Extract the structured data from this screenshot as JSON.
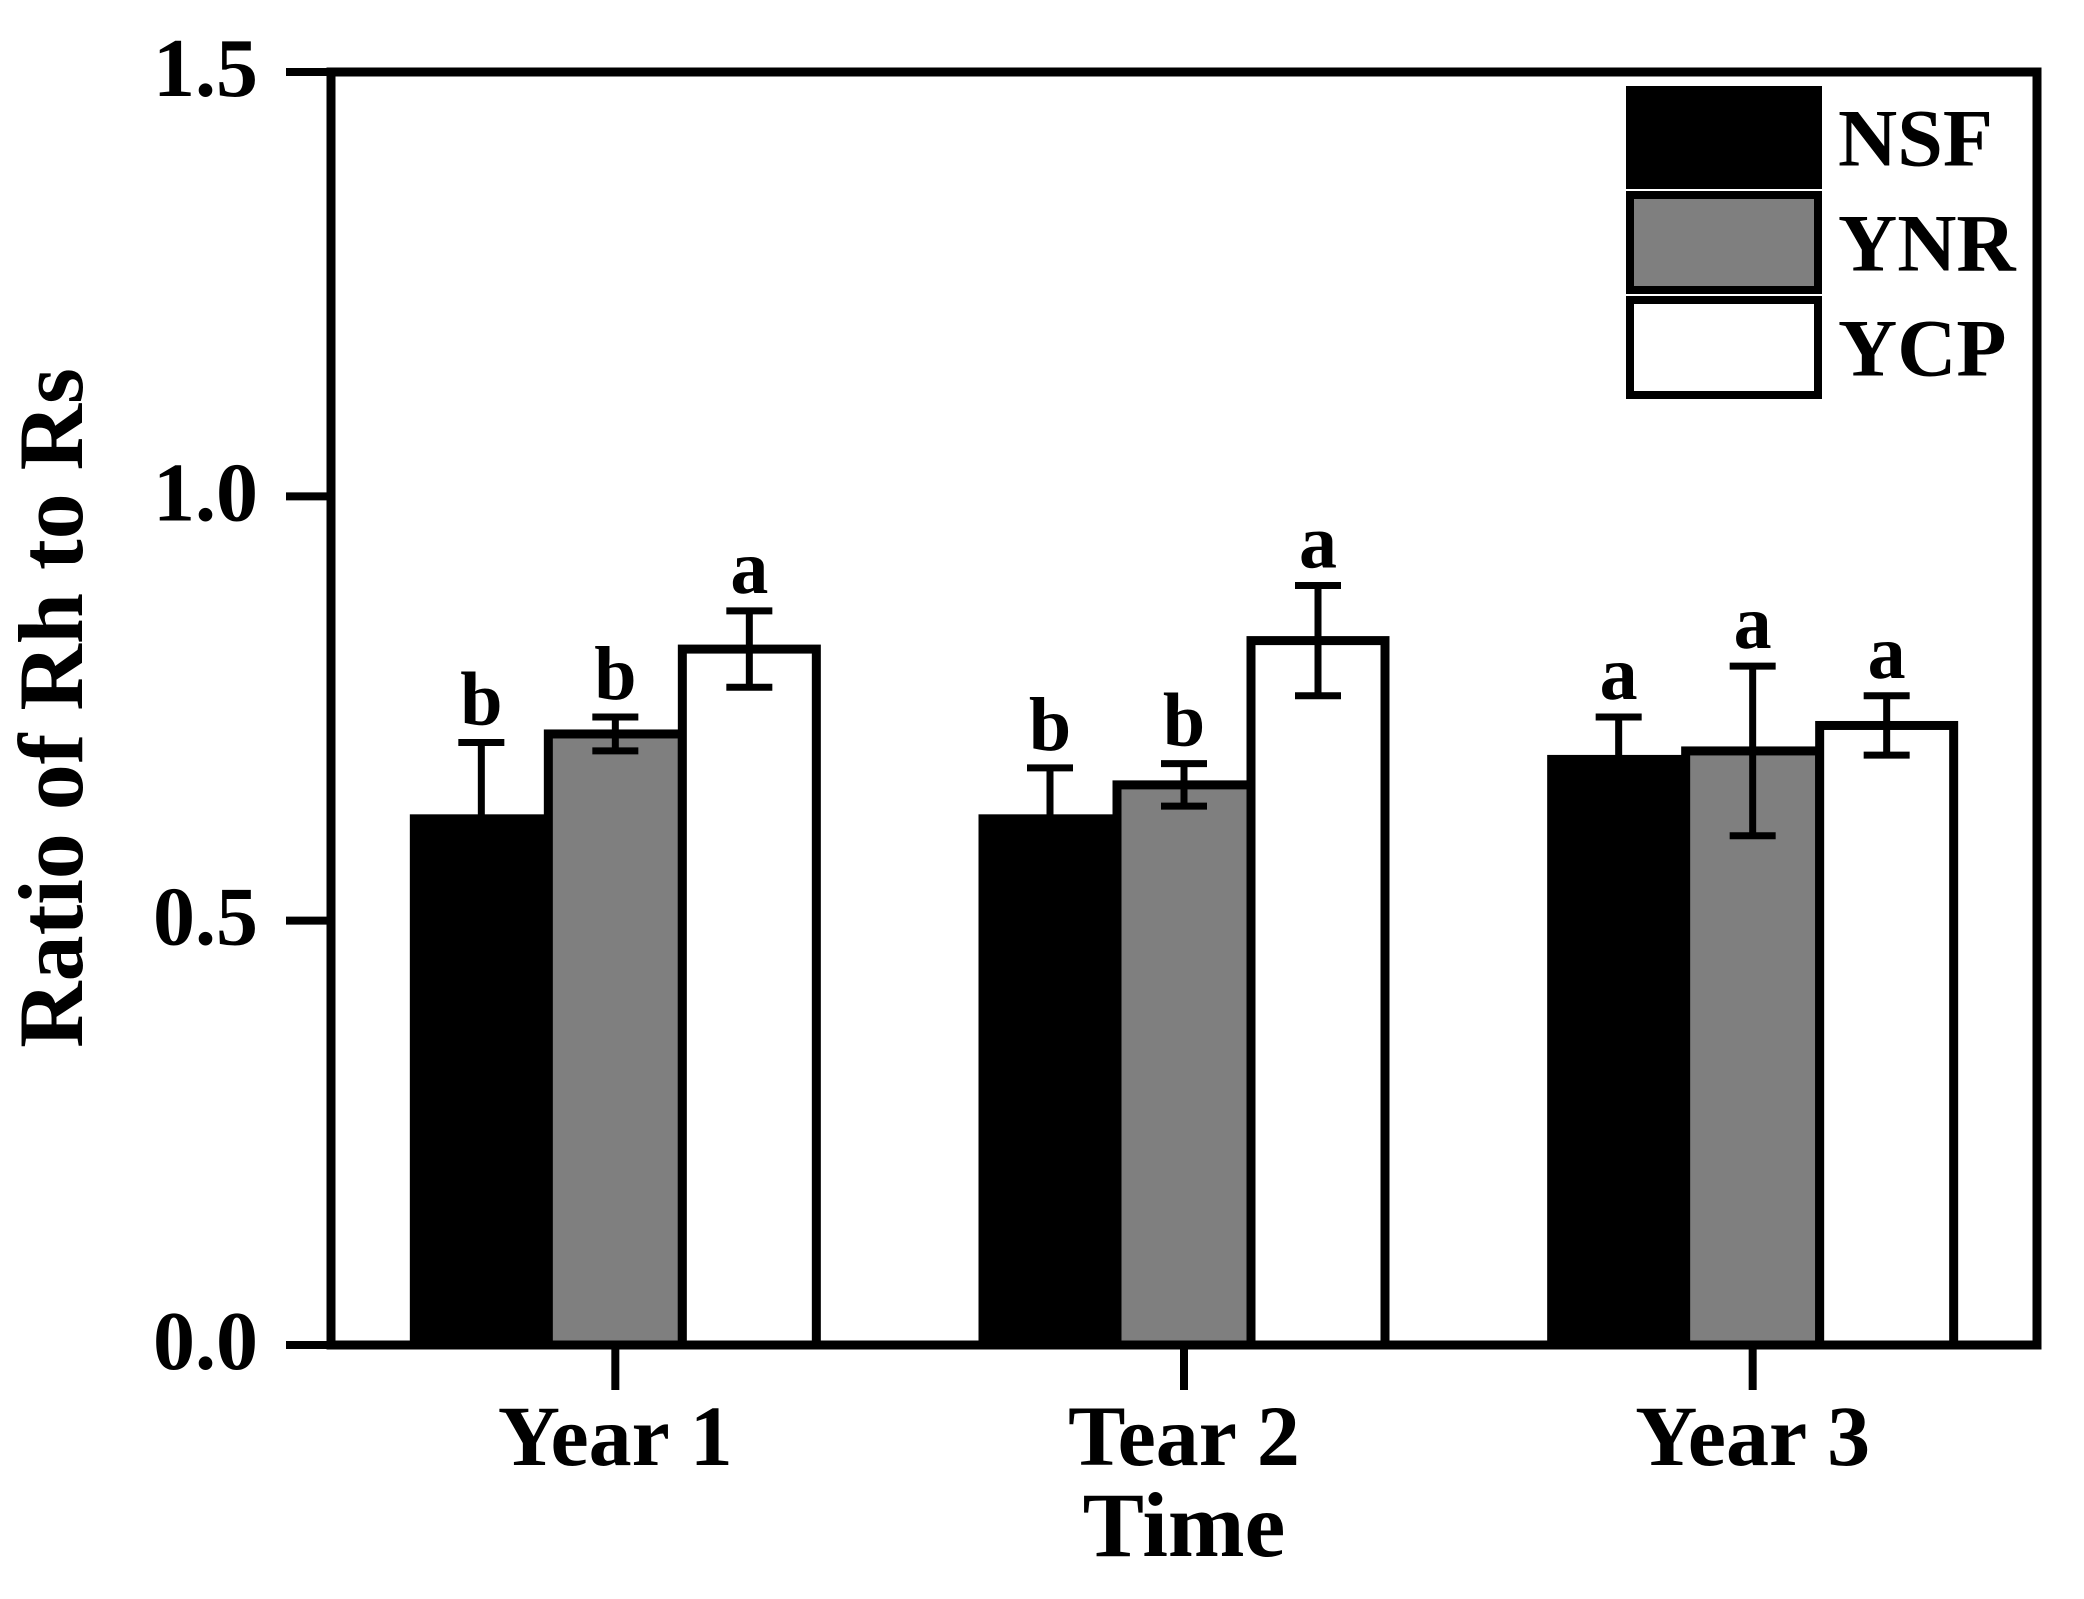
{
  "figure": {
    "background_color": "#ffffff",
    "foreground_color": "#000000"
  },
  "chart_data": {
    "type": "bar",
    "title": "",
    "xlabel": "Time",
    "ylabel": "Ratio of Rh to Rs",
    "ylim": [
      0,
      1.5
    ],
    "yticks": [
      0.0,
      0.5,
      1.0,
      1.5
    ],
    "grid": false,
    "legend_position": "top-right",
    "categories": [
      "Year 1",
      "Tear 2",
      "Year 3"
    ],
    "series": [
      {
        "name": "NSF",
        "color": "#000000",
        "values": [
          0.62,
          0.62,
          0.69
        ],
        "errors": [
          0.09,
          0.06,
          0.05
        ],
        "sig_letters": [
          "b",
          "b",
          "a"
        ]
      },
      {
        "name": "YNR",
        "color": "#7f7f7f",
        "values": [
          0.72,
          0.66,
          0.7
        ],
        "errors": [
          0.02,
          0.025,
          0.1
        ],
        "sig_letters": [
          "b",
          "b",
          "a"
        ]
      },
      {
        "name": "YCP",
        "color": "#ffffff",
        "values": [
          0.82,
          0.83,
          0.73
        ],
        "errors": [
          0.045,
          0.065,
          0.035
        ],
        "sig_letters": [
          "a",
          "a",
          "a"
        ]
      }
    ]
  }
}
